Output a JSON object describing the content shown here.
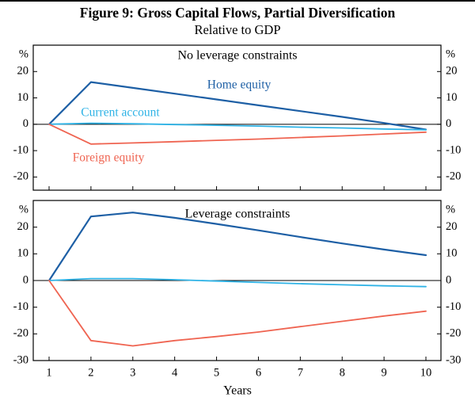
{
  "figure": {
    "title": "Figure 9: Gross Capital Flows, Partial Diversification",
    "subtitle": "Relative to GDP",
    "xlabel": "Years",
    "unit_label": "%"
  },
  "colors": {
    "axis": "#000000",
    "home_equity": "#1d5fa5",
    "current_account": "#2fb3e6",
    "foreign_equity": "#ef6451"
  },
  "chart_data": [
    {
      "type": "line",
      "title": "No leverage constraints",
      "x": [
        1,
        2,
        3,
        4,
        5,
        6,
        7,
        8,
        9,
        10
      ],
      "ylim": [
        -25,
        30
      ],
      "yticks": [
        20,
        10,
        0,
        -10,
        -20
      ],
      "grid": false,
      "legend_position": "labels-in-plot",
      "series": [
        {
          "name": "Home equity",
          "color": "#1d5fa5",
          "values": [
            0,
            16,
            13.8,
            11.6,
            9.4,
            7.2,
            5.0,
            2.8,
            0.5,
            -2.0
          ]
        },
        {
          "name": "Current account",
          "color": "#2fb3e6",
          "values": [
            0,
            0.4,
            0.2,
            -0.1,
            -0.4,
            -0.7,
            -1.1,
            -1.4,
            -1.8,
            -2.1
          ]
        },
        {
          "name": "Foreign equity",
          "color": "#ef6451",
          "values": [
            0,
            -7.5,
            -7.1,
            -6.6,
            -6.1,
            -5.6,
            -5.0,
            -4.4,
            -3.7,
            -3.0
          ]
        }
      ]
    },
    {
      "type": "line",
      "title": "Leverage constraints",
      "x": [
        1,
        2,
        3,
        4,
        5,
        6,
        7,
        8,
        9,
        10
      ],
      "ylim": [
        -30,
        30
      ],
      "yticks": [
        20,
        10,
        0,
        -10,
        -20,
        -30
      ],
      "grid": false,
      "legend_position": "none",
      "series": [
        {
          "name": "Home equity",
          "color": "#1d5fa5",
          "values": [
            0,
            24,
            25.5,
            23.5,
            21.2,
            18.8,
            16.3,
            13.9,
            11.6,
            9.5
          ]
        },
        {
          "name": "Current account",
          "color": "#2fb3e6",
          "values": [
            0,
            0.7,
            0.7,
            0.3,
            -0.2,
            -0.7,
            -1.2,
            -1.6,
            -2.0,
            -2.3
          ]
        },
        {
          "name": "Foreign equity",
          "color": "#ef6451",
          "values": [
            0,
            -22.5,
            -24.5,
            -22.5,
            -21.0,
            -19.3,
            -17.3,
            -15.3,
            -13.3,
            -11.5
          ]
        }
      ]
    }
  ]
}
